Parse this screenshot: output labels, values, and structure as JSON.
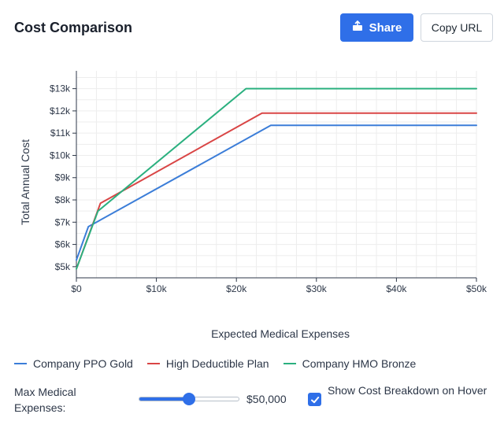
{
  "header": {
    "title": "Cost Comparison",
    "share_label": "Share",
    "copy_label": "Copy URL"
  },
  "controls": {
    "max_label": "Max Medical Expenses:",
    "slider_value": 50000,
    "slider_min": 0,
    "slider_max": 100000,
    "slider_value_label": "$50,000",
    "breakdown_label": "Show Cost Breakdown on Hover",
    "breakdown_checked": true
  },
  "chart_data": {
    "type": "line",
    "xlabel": "Expected Medical Expenses",
    "ylabel": "Total Annual Cost",
    "xlim": [
      0,
      50000
    ],
    "ylim": [
      4500,
      13800
    ],
    "x_ticks": [
      0,
      10000,
      20000,
      30000,
      40000,
      50000
    ],
    "x_tick_labels": [
      "$0",
      "$10k",
      "$20k",
      "$30k",
      "$40k",
      "$50k"
    ],
    "y_ticks": [
      5000,
      6000,
      7000,
      8000,
      9000,
      10000,
      11000,
      12000,
      13000
    ],
    "y_tick_labels": [
      "$5k",
      "$6k",
      "$7k",
      "$8k",
      "$9k",
      "$10k",
      "$11k",
      "$12k",
      "$13k"
    ],
    "grid": true,
    "legend_position": "bottom-left",
    "series": [
      {
        "name": "Company PPO Gold",
        "color": "#3b7dd8",
        "points": [
          [
            0,
            5300
          ],
          [
            1500,
            6800
          ],
          [
            24300,
            11350
          ],
          [
            50000,
            11350
          ]
        ]
      },
      {
        "name": "High Deductible Plan",
        "color": "#d94545",
        "points": [
          [
            0,
            4900
          ],
          [
            3000,
            7850
          ],
          [
            23200,
            11900
          ],
          [
            50000,
            11900
          ]
        ]
      },
      {
        "name": "Company HMO Bronze",
        "color": "#2bb07f",
        "points": [
          [
            0,
            4900
          ],
          [
            2700,
            7500
          ],
          [
            21200,
            13000
          ],
          [
            50000,
            13000
          ]
        ]
      }
    ]
  }
}
